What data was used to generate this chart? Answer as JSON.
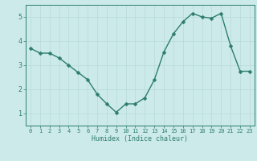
{
  "x": [
    0,
    1,
    2,
    3,
    4,
    5,
    6,
    7,
    8,
    9,
    10,
    11,
    12,
    13,
    14,
    15,
    16,
    17,
    18,
    19,
    20,
    21,
    22,
    23
  ],
  "y": [
    3.7,
    3.5,
    3.5,
    3.3,
    3.0,
    2.7,
    2.4,
    1.8,
    1.4,
    1.05,
    1.4,
    1.4,
    1.65,
    2.4,
    3.55,
    4.3,
    4.8,
    5.15,
    5.0,
    4.95,
    5.15,
    3.8,
    2.75,
    2.75
  ],
  "line_color": "#2e7d6e",
  "marker": "D",
  "markersize": 2.5,
  "linewidth": 1.0,
  "xlabel": "Humidex (Indice chaleur)",
  "xlim": [
    -0.5,
    23.5
  ],
  "ylim": [
    0.5,
    5.5
  ],
  "yticks": [
    1,
    2,
    3,
    4,
    5
  ],
  "xticks": [
    0,
    1,
    2,
    3,
    4,
    5,
    6,
    7,
    8,
    9,
    10,
    11,
    12,
    13,
    14,
    15,
    16,
    17,
    18,
    19,
    20,
    21,
    22,
    23
  ],
  "bg_color": "#cceaea",
  "grid_color": "#b8d8d8",
  "tick_color": "#2e7d6e",
  "label_color": "#2e7d6e",
  "axis_color": "#2e7d6e",
  "xlabel_fontsize": 6.0,
  "tick_fontsize": 5.0,
  "ytick_fontsize": 6.0
}
